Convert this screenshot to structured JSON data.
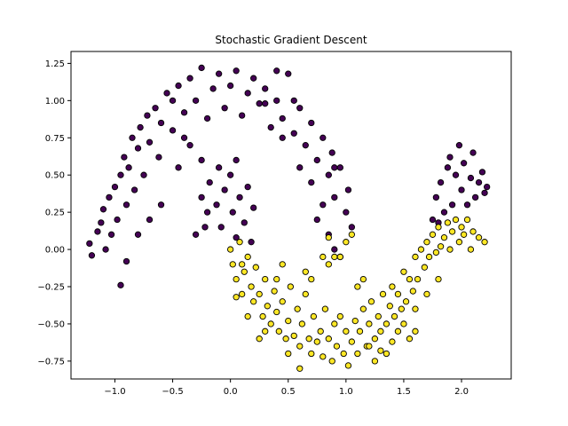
{
  "chart_data": {
    "type": "scatter",
    "title": "Stochastic Gradient Descent",
    "xlabel": "",
    "ylabel": "",
    "xlim": [
      -1.38,
      2.43
    ],
    "ylim": [
      -0.87,
      1.33
    ],
    "xticks": [
      -1.0,
      -0.5,
      0.0,
      0.5,
      1.0,
      1.5,
      2.0
    ],
    "xtick_labels": [
      "−1.0",
      "−0.5",
      "0.0",
      "0.5",
      "1.0",
      "1.5",
      "2.0"
    ],
    "yticks": [
      -0.75,
      -0.5,
      -0.25,
      0.0,
      0.25,
      0.5,
      0.75,
      1.0,
      1.25
    ],
    "ytick_labels": [
      "−0.75",
      "−0.50",
      "−0.25",
      "0.00",
      "0.25",
      "0.50",
      "0.75",
      "1.00",
      "1.25"
    ],
    "grid": false,
    "legend": "none",
    "series": [
      {
        "color": "#440154",
        "points": [
          [
            -1.22,
            0.04
          ],
          [
            -1.2,
            -0.04
          ],
          [
            -1.15,
            0.12
          ],
          [
            -1.12,
            0.18
          ],
          [
            -1.1,
            0.27
          ],
          [
            -1.08,
            0.0
          ],
          [
            -1.05,
            0.35
          ],
          [
            -1.03,
            0.1
          ],
          [
            -1.0,
            0.42
          ],
          [
            -0.98,
            0.2
          ],
          [
            -0.95,
            0.5
          ],
          [
            -0.92,
            0.62
          ],
          [
            -0.9,
            0.3
          ],
          [
            -0.88,
            0.55
          ],
          [
            -0.85,
            0.75
          ],
          [
            -0.83,
            0.4
          ],
          [
            -0.8,
            0.68
          ],
          [
            -0.78,
            0.82
          ],
          [
            -0.75,
            0.5
          ],
          [
            -0.72,
            0.9
          ],
          [
            -0.7,
            0.72
          ],
          [
            -0.65,
            0.95
          ],
          [
            -0.62,
            0.62
          ],
          [
            -0.6,
            0.85
          ],
          [
            -0.55,
            1.05
          ],
          [
            -0.5,
            0.8
          ],
          [
            -0.45,
            1.1
          ],
          [
            -0.4,
            0.92
          ],
          [
            -0.35,
            1.15
          ],
          [
            -0.3,
            1.0
          ],
          [
            -0.25,
            1.22
          ],
          [
            -0.2,
            0.88
          ],
          [
            -0.15,
            1.08
          ],
          [
            -0.1,
            1.18
          ],
          [
            -0.05,
            0.95
          ],
          [
            0.0,
            1.1
          ],
          [
            0.05,
            1.2
          ],
          [
            0.1,
            0.9
          ],
          [
            0.15,
            1.05
          ],
          [
            0.2,
            1.15
          ],
          [
            0.25,
            0.98
          ],
          [
            0.3,
            1.08
          ],
          [
            0.35,
            0.82
          ],
          [
            0.4,
            1.0
          ],
          [
            0.45,
            0.88
          ],
          [
            0.5,
            1.18
          ],
          [
            0.55,
            0.78
          ],
          [
            0.6,
            0.95
          ],
          [
            0.65,
            0.7
          ],
          [
            0.7,
            0.85
          ],
          [
            0.75,
            0.6
          ],
          [
            0.8,
            0.75
          ],
          [
            0.85,
            0.5
          ],
          [
            0.88,
            0.65
          ],
          [
            0.9,
            0.35
          ],
          [
            0.95,
            0.55
          ],
          [
            1.0,
            0.25
          ],
          [
            1.02,
            0.4
          ],
          [
            1.05,
            0.15
          ],
          [
            0.8,
            0.3
          ],
          [
            0.7,
            0.45
          ],
          [
            0.6,
            0.55
          ],
          [
            0.75,
            0.2
          ],
          [
            0.85,
            0.1
          ],
          [
            0.95,
            -0.05
          ],
          [
            0.9,
            0.0
          ],
          [
            -0.25,
            0.35
          ],
          [
            -0.2,
            0.25
          ],
          [
            -0.18,
            0.45
          ],
          [
            -0.12,
            0.3
          ],
          [
            -0.08,
            0.15
          ],
          [
            -0.05,
            0.4
          ],
          [
            0.0,
            0.5
          ],
          [
            0.02,
            0.25
          ],
          [
            0.05,
            0.08
          ],
          [
            0.08,
            0.35
          ],
          [
            0.12,
            0.18
          ],
          [
            0.15,
            0.42
          ],
          [
            0.18,
            0.05
          ],
          [
            0.2,
            0.28
          ],
          [
            -0.3,
            0.1
          ],
          [
            -0.22,
            0.15
          ],
          [
            -0.1,
            0.55
          ],
          [
            0.05,
            0.6
          ],
          [
            -0.45,
            0.55
          ],
          [
            -0.35,
            0.7
          ],
          [
            -0.25,
            0.6
          ],
          [
            -0.6,
            0.3
          ],
          [
            -0.7,
            0.2
          ],
          [
            -0.8,
            0.1
          ],
          [
            -0.9,
            -0.08
          ],
          [
            -0.95,
            -0.24
          ],
          [
            1.78,
            0.35
          ],
          [
            1.82,
            0.45
          ],
          [
            1.85,
            0.25
          ],
          [
            1.88,
            0.55
          ],
          [
            1.9,
            0.62
          ],
          [
            1.92,
            0.3
          ],
          [
            1.95,
            0.5
          ],
          [
            1.98,
            0.7
          ],
          [
            2.0,
            0.4
          ],
          [
            2.02,
            0.58
          ],
          [
            2.05,
            0.3
          ],
          [
            2.08,
            0.48
          ],
          [
            2.1,
            0.65
          ],
          [
            2.12,
            0.35
          ],
          [
            2.15,
            0.45
          ],
          [
            2.18,
            0.52
          ],
          [
            2.2,
            0.38
          ],
          [
            2.22,
            0.42
          ],
          [
            1.75,
            0.2
          ],
          [
            1.8,
            0.18
          ],
          [
            0.3,
            0.98
          ],
          [
            0.4,
            1.2
          ],
          [
            -0.5,
            1.0
          ],
          [
            -0.4,
            0.75
          ],
          [
            0.45,
            0.75
          ],
          [
            0.55,
            1.0
          ],
          [
            0.9,
            0.55
          ]
        ]
      },
      {
        "color": "#fde725",
        "points": [
          [
            0.0,
            0.0
          ],
          [
            0.02,
            -0.1
          ],
          [
            0.05,
            -0.2
          ],
          [
            0.08,
            0.05
          ],
          [
            0.1,
            -0.3
          ],
          [
            0.12,
            -0.15
          ],
          [
            0.15,
            -0.05
          ],
          [
            0.18,
            -0.25
          ],
          [
            0.2,
            -0.35
          ],
          [
            0.22,
            -0.12
          ],
          [
            0.25,
            -0.3
          ],
          [
            0.28,
            -0.45
          ],
          [
            0.3,
            -0.2
          ],
          [
            0.32,
            -0.38
          ],
          [
            0.35,
            -0.5
          ],
          [
            0.38,
            -0.28
          ],
          [
            0.4,
            -0.42
          ],
          [
            0.42,
            -0.55
          ],
          [
            0.45,
            -0.35
          ],
          [
            0.48,
            -0.6
          ],
          [
            0.5,
            -0.48
          ],
          [
            0.52,
            -0.25
          ],
          [
            0.55,
            -0.58
          ],
          [
            0.58,
            -0.4
          ],
          [
            0.6,
            -0.65
          ],
          [
            0.62,
            -0.5
          ],
          [
            0.65,
            -0.3
          ],
          [
            0.68,
            -0.6
          ],
          [
            0.7,
            -0.7
          ],
          [
            0.72,
            -0.45
          ],
          [
            0.75,
            -0.62
          ],
          [
            0.78,
            -0.55
          ],
          [
            0.8,
            -0.72
          ],
          [
            0.82,
            -0.4
          ],
          [
            0.85,
            -0.6
          ],
          [
            0.88,
            -0.75
          ],
          [
            0.9,
            -0.5
          ],
          [
            0.92,
            -0.65
          ],
          [
            0.95,
            -0.45
          ],
          [
            0.98,
            -0.7
          ],
          [
            1.0,
            -0.55
          ],
          [
            1.02,
            -0.78
          ],
          [
            1.05,
            -0.62
          ],
          [
            1.08,
            -0.48
          ],
          [
            1.1,
            -0.7
          ],
          [
            1.12,
            -0.55
          ],
          [
            1.15,
            -0.4
          ],
          [
            1.18,
            -0.65
          ],
          [
            1.2,
            -0.5
          ],
          [
            1.22,
            -0.35
          ],
          [
            1.25,
            -0.6
          ],
          [
            1.28,
            -0.45
          ],
          [
            1.3,
            -0.55
          ],
          [
            1.32,
            -0.3
          ],
          [
            1.35,
            -0.5
          ],
          [
            1.38,
            -0.38
          ],
          [
            1.4,
            -0.25
          ],
          [
            1.42,
            -0.45
          ],
          [
            1.45,
            -0.3
          ],
          [
            1.48,
            -0.4
          ],
          [
            1.5,
            -0.15
          ],
          [
            1.52,
            -0.35
          ],
          [
            1.55,
            -0.2
          ],
          [
            1.58,
            -0.28
          ],
          [
            1.6,
            -0.05
          ],
          [
            1.62,
            -0.2
          ],
          [
            1.65,
            0.0
          ],
          [
            1.68,
            -0.12
          ],
          [
            1.7,
            0.05
          ],
          [
            1.72,
            -0.05
          ],
          [
            1.75,
            0.1
          ],
          [
            1.78,
            -0.02
          ],
          [
            1.8,
            0.15
          ],
          [
            1.82,
            0.02
          ],
          [
            1.85,
            0.08
          ],
          [
            1.88,
            0.18
          ],
          [
            1.9,
            0.0
          ],
          [
            1.92,
            0.12
          ],
          [
            1.95,
            0.2
          ],
          [
            1.98,
            0.05
          ],
          [
            2.0,
            0.15
          ],
          [
            2.02,
            0.1
          ],
          [
            2.05,
            0.2
          ],
          [
            2.08,
            0.0
          ],
          [
            2.1,
            0.12
          ],
          [
            2.15,
            0.08
          ],
          [
            2.2,
            0.05
          ],
          [
            1.7,
            -0.3
          ],
          [
            1.8,
            -0.2
          ],
          [
            1.6,
            -0.4
          ],
          [
            1.5,
            -0.5
          ],
          [
            1.4,
            -0.62
          ],
          [
            1.3,
            -0.68
          ],
          [
            1.2,
            -0.65
          ],
          [
            0.6,
            -0.8
          ],
          [
            0.5,
            -0.7
          ],
          [
            0.3,
            -0.55
          ],
          [
            0.25,
            -0.6
          ],
          [
            0.15,
            -0.45
          ],
          [
            0.05,
            -0.32
          ],
          [
            0.85,
            0.08
          ],
          [
            0.9,
            -0.05
          ],
          [
            0.95,
            -0.05
          ],
          [
            1.0,
            0.05
          ],
          [
            1.05,
            0.1
          ],
          [
            0.8,
            -0.05
          ],
          [
            0.85,
            -0.1
          ],
          [
            1.1,
            -0.25
          ],
          [
            1.15,
            -0.2
          ],
          [
            0.65,
            -0.15
          ],
          [
            0.7,
            -0.2
          ],
          [
            0.45,
            -0.1
          ],
          [
            0.4,
            -0.2
          ],
          [
            0.1,
            -0.1
          ],
          [
            1.6,
            -0.55
          ],
          [
            1.55,
            -0.6
          ],
          [
            1.45,
            -0.55
          ],
          [
            1.35,
            -0.7
          ],
          [
            1.25,
            -0.75
          ]
        ]
      }
    ]
  }
}
